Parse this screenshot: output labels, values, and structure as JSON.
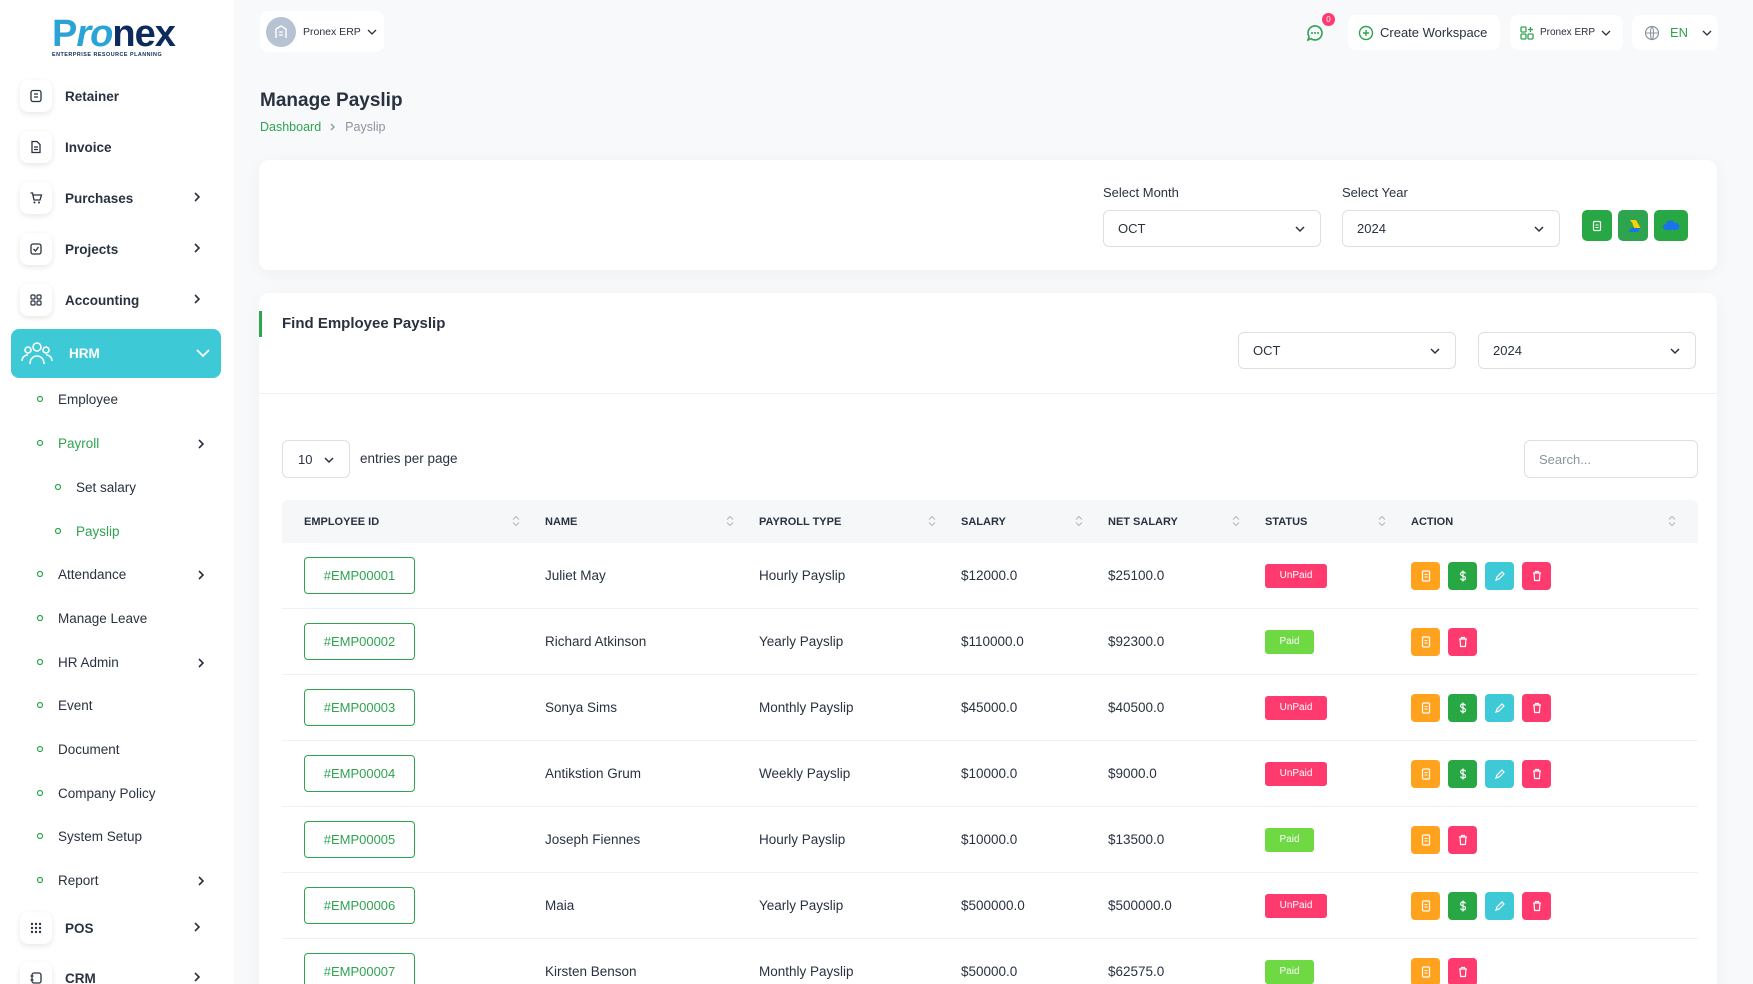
{
  "brand": {
    "name_p": "P",
    "name_ro": "ro",
    "name_nex": "nex",
    "tagline": "ENTERPRISE RESOURCE PLANNING"
  },
  "sidebar": {
    "top_items": [
      {
        "label": "Retainer",
        "icon": "retainer-icon"
      },
      {
        "label": "Invoice",
        "icon": "invoice-icon"
      },
      {
        "label": "Purchases",
        "icon": "cart-icon"
      },
      {
        "label": "Projects",
        "icon": "checkbox-icon"
      },
      {
        "label": "Accounting",
        "icon": "grid-icon"
      }
    ],
    "hrm": {
      "label": "HRM",
      "icon": "team-icon"
    },
    "hrm_items": [
      {
        "label": "Employee"
      },
      {
        "label": "Payroll"
      },
      {
        "label": "Set salary"
      },
      {
        "label": "Payslip"
      },
      {
        "label": "Attendance"
      },
      {
        "label": "Manage Leave"
      },
      {
        "label": "HR Admin"
      },
      {
        "label": "Event"
      },
      {
        "label": "Document"
      },
      {
        "label": "Company Policy"
      },
      {
        "label": "System Setup"
      },
      {
        "label": "Report"
      }
    ],
    "bottom_items": [
      {
        "label": "POS",
        "icon": "dots-grid-icon"
      },
      {
        "label": "CRM",
        "icon": "crm-icon"
      }
    ]
  },
  "header": {
    "org_name": "Pronex ERP",
    "notification_count": "0",
    "create_workspace": "Create Workspace",
    "workspace_name": "Pronex ERP",
    "language": "EN"
  },
  "page": {
    "title": "Manage Payslip",
    "breadcrumb": {
      "home": "Dashboard",
      "current": "Payslip"
    }
  },
  "filter": {
    "month_label": "Select Month",
    "month_value": "OCT",
    "year_label": "Select Year",
    "year_value": "2024"
  },
  "find": {
    "title": "Find Employee Payslip",
    "month_value": "OCT",
    "year_value": "2024",
    "entries_value": "10",
    "entries_label": "entries per page",
    "search_placeholder": "Search..."
  },
  "table": {
    "columns": [
      "EMPLOYEE ID",
      "NAME",
      "PAYROLL TYPE",
      "SALARY",
      "NET SALARY",
      "STATUS",
      "ACTION"
    ],
    "rows": [
      {
        "id": "#EMP00001",
        "name": "Juliet May",
        "type": "Hourly Payslip",
        "salary": "$12000.0",
        "net": "$25100.0",
        "status": "UnPaid"
      },
      {
        "id": "#EMP00002",
        "name": "Richard Atkinson",
        "type": "Yearly Payslip",
        "salary": "$110000.0",
        "net": "$92300.0",
        "status": "Paid"
      },
      {
        "id": "#EMP00003",
        "name": "Sonya Sims",
        "type": "Monthly Payslip",
        "salary": "$45000.0",
        "net": "$40500.0",
        "status": "UnPaid"
      },
      {
        "id": "#EMP00004",
        "name": "Antikstion Grum",
        "type": "Weekly Payslip",
        "salary": "$10000.0",
        "net": "$9000.0",
        "status": "UnPaid"
      },
      {
        "id": "#EMP00005",
        "name": "Joseph Fiennes",
        "type": "Hourly Payslip",
        "salary": "$10000.0",
        "net": "$13500.0",
        "status": "Paid"
      },
      {
        "id": "#EMP00006",
        "name": "Maia",
        "type": "Yearly Payslip",
        "salary": "$500000.0",
        "net": "$500000.0",
        "status": "UnPaid"
      },
      {
        "id": "#EMP00007",
        "name": "Kirsten Benson",
        "type": "Monthly Payslip",
        "salary": "$50000.0",
        "net": "$62575.0",
        "status": "Paid"
      }
    ]
  },
  "colors": {
    "primary_green": "#2ea44f",
    "hrm_active": "#3ec9d6",
    "unpaid": "#ff3a6e",
    "paid": "#6fd943",
    "action_orange": "#ffa21d",
    "action_green": "#28a745",
    "action_cyan": "#3ec9d6",
    "action_red": "#ff3a6e"
  }
}
